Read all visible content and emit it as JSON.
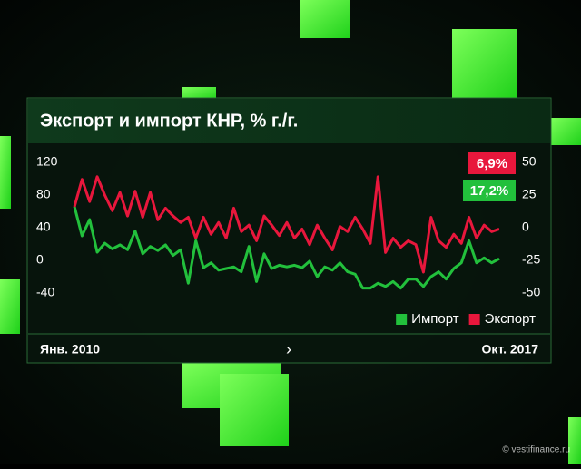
{
  "chart_data": {
    "type": "line",
    "title": "Экспорт и импорт КНР, % г./г.",
    "categories": [
      "Янв. 2010",
      null,
      null,
      null,
      null,
      null,
      null,
      null,
      null,
      null,
      null,
      null,
      null,
      null,
      null,
      null,
      null,
      null,
      null,
      null,
      null,
      null,
      null,
      null,
      null,
      null,
      null,
      null,
      null,
      null,
      null,
      null,
      null,
      null,
      null,
      null,
      null,
      null,
      null,
      null,
      null,
      null,
      null,
      null,
      null,
      null,
      null,
      null,
      null,
      null,
      null,
      null,
      null,
      null,
      null,
      null,
      "Окт. 2017"
    ],
    "series": [
      {
        "name": "Импорт",
        "color": "#22c03c",
        "axis": "y",
        "values": [
          66,
          30,
          50,
          10,
          21,
          14,
          19,
          13,
          36,
          8,
          17,
          12,
          19,
          6,
          13,
          -28,
          24,
          -9,
          -3,
          -12,
          -10,
          -8,
          -14,
          17,
          -26,
          8,
          -10,
          -6,
          -8,
          -6,
          -9,
          -1,
          -20,
          -8,
          -12,
          -3,
          -14,
          -17,
          -34,
          -34,
          -28,
          -32,
          -26,
          -34,
          -23,
          -23,
          -32,
          -20,
          -14,
          -23,
          -10,
          -3,
          24,
          -3,
          3,
          -3,
          2
        ]
      },
      {
        "name": "Экспорт",
        "color": "#e8173c",
        "axis": "y2",
        "values": [
          16,
          37,
          20,
          39,
          25,
          13,
          27,
          9,
          28,
          8,
          27,
          6,
          15,
          9,
          4,
          8,
          -8,
          8,
          -5,
          4,
          -8,
          15,
          -3,
          2,
          -10,
          9,
          2,
          -6,
          4,
          -8,
          -1,
          -13,
          2,
          -8,
          -17,
          1,
          -3,
          8,
          -1,
          -12,
          39,
          -19,
          -8,
          -15,
          -10,
          -13,
          -34,
          8,
          -10,
          -15,
          -5,
          -12,
          8,
          -8,
          2,
          -3,
          -1
        ]
      }
    ],
    "import_label": "17,2%",
    "export_label": "6,9%",
    "ylim": [
      -50,
      130
    ],
    "yticks": [
      120,
      80,
      40,
      0,
      -40
    ],
    "y2lim": [
      -56.25,
      56.25
    ],
    "y2ticks": [
      50,
      25,
      0,
      -25,
      -50
    ],
    "legend": "bottom-right",
    "watermark": "© vestifinance.ru"
  }
}
